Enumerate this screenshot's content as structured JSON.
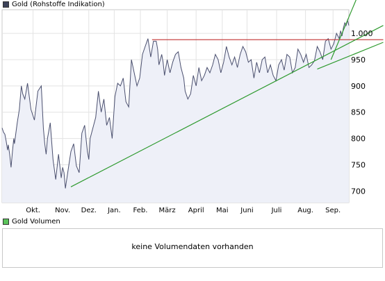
{
  "legend_price": {
    "label": "Gold (Rohstoffe Indikation)",
    "color": "#3c4259"
  },
  "legend_volume": {
    "label": "Gold Volumen",
    "color": "#5ac35a"
  },
  "volume_panel": {
    "message": "keine Volumendaten vorhanden"
  },
  "chart_data": {
    "type": "line",
    "series": [
      {
        "name": "Gold (Rohstoffe Indikation)",
        "color": "#4a4f6e",
        "fill": "#eef0f8",
        "x": [
          0,
          2,
          4,
          6,
          8,
          9,
          11,
          13,
          15,
          17,
          18,
          20,
          22,
          25,
          28,
          30,
          33,
          37,
          42,
          47,
          52,
          57,
          60,
          62,
          64,
          66,
          70,
          74,
          78,
          82,
          86,
          88,
          90,
          92,
          96,
          100,
          104,
          108,
          112,
          116,
          120,
          124,
          126,
          128,
          132,
          136,
          140,
          144,
          148,
          152,
          156,
          160,
          164,
          168,
          172,
          176,
          180,
          184,
          188,
          192,
          196,
          200,
          204,
          208,
          212,
          216,
          220,
          224,
          226,
          228,
          230,
          232,
          234,
          236,
          238,
          240,
          244,
          248,
          252,
          256,
          260,
          264,
          266,
          270,
          274,
          278,
          282,
          286,
          290,
          294,
          298,
          302,
          306,
          310,
          314,
          318,
          322,
          326,
          330,
          334,
          338,
          342,
          346,
          350,
          354,
          358,
          362,
          366,
          370,
          374,
          378,
          382,
          386,
          390,
          394,
          398,
          402,
          406,
          410,
          414,
          418,
          422,
          426,
          430,
          434,
          438,
          442,
          446,
          450,
          454,
          458,
          462,
          466,
          470,
          474,
          478,
          482,
          486,
          488,
          490,
          492,
          494,
          496,
          498,
          500,
          502,
          504
        ],
        "y": [
          820,
          812,
          808,
          795,
          778,
          788,
          770,
          745,
          775,
          800,
          790,
          810,
          830,
          855,
          900,
          885,
          875,
          905,
          855,
          835,
          890,
          900,
          820,
          790,
          770,
          800,
          830,
          760,
          722,
          770,
          725,
          745,
          735,
          705,
          740,
          775,
          790,
          748,
          735,
          810,
          825,
          775,
          760,
          800,
          820,
          840,
          890,
          850,
          875,
          825,
          840,
          800,
          880,
          905,
          900,
          915,
          870,
          860,
          950,
          925,
          900,
          915,
          960,
          975,
          990,
          955,
          985,
          985,
          970,
          940,
          950,
          960,
          945,
          920,
          935,
          950,
          925,
          945,
          960,
          965,
          935,
          915,
          890,
          875,
          885,
          920,
          900,
          935,
          910,
          920,
          935,
          925,
          940,
          960,
          950,
          925,
          945,
          975,
          955,
          940,
          955,
          935,
          960,
          975,
          965,
          945,
          950,
          915,
          945,
          925,
          950,
          955,
          925,
          940,
          920,
          910,
          940,
          950,
          930,
          960,
          955,
          925,
          935,
          970,
          960,
          945,
          960,
          935,
          940,
          948,
          975,
          965,
          950,
          985,
          990,
          970,
          980,
          1000,
          995,
          990,
          1005,
          995,
          1010,
          1020,
          1015,
          1025,
          1015
        ]
      }
    ],
    "trendlines": [
      {
        "color": "#c03030",
        "x1": 218,
        "y1": 988,
        "x2": 554,
        "y2": 988
      },
      {
        "color": "#2e9a2e",
        "x1": 100,
        "y1": 708,
        "x2": 554,
        "y2": 1015
      },
      {
        "color": "#2e9a2e",
        "x1": 458,
        "y1": 932,
        "x2": 554,
        "y2": 983
      },
      {
        "color": "#2e9a2e",
        "x1": 478,
        "y1": 950,
        "x2": 530,
        "y2": 1112
      }
    ],
    "x_ticks": [
      {
        "label": "Okt.",
        "x": 45
      },
      {
        "label": "Nov.",
        "x": 88
      },
      {
        "label": "Dez.",
        "x": 126
      },
      {
        "label": "Jan.",
        "x": 163
      },
      {
        "label": "Feb.",
        "x": 201
      },
      {
        "label": "März",
        "x": 240
      },
      {
        "label": "April",
        "x": 282
      },
      {
        "label": "Mai",
        "x": 320
      },
      {
        "label": "Juni",
        "x": 356
      },
      {
        "label": "Juli",
        "x": 399
      },
      {
        "label": "Aug.",
        "x": 441
      },
      {
        "label": "Sep.",
        "x": 481
      }
    ],
    "y_ticks": [
      {
        "label": "700",
        "value": 700
      },
      {
        "label": "750",
        "value": 750
      },
      {
        "label": "800",
        "value": 800
      },
      {
        "label": "850",
        "value": 850
      },
      {
        "label": "900",
        "value": 900
      },
      {
        "label": "950",
        "value": 950
      },
      {
        "label": "1.000",
        "value": 1000
      }
    ],
    "xlim": [
      0,
      504
    ],
    "ylim": [
      678,
      1045
    ],
    "grid": true
  }
}
